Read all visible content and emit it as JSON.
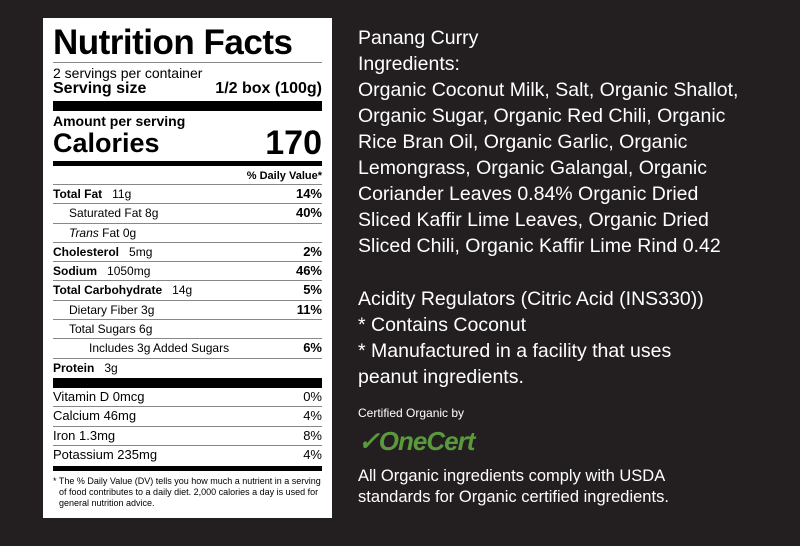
{
  "label": {
    "title": "Nutrition Facts",
    "servings": "2 servings per container",
    "serving_size_label": "Serving size",
    "serving_size_value": "1/2 box (100g)",
    "amount_per_serving": "Amount per serving",
    "calories_label": "Calories",
    "calories_value": "170",
    "dv_header": "% Daily Value*",
    "nutrients": [
      {
        "name": "Total Fat",
        "amount": "11g",
        "dv": "14%"
      },
      {
        "name": "Saturated Fat 8g",
        "amount": "",
        "dv": "40%"
      },
      {
        "name": "Trans",
        "amount": "Fat 0g",
        "dv": ""
      },
      {
        "name": "Cholesterol",
        "amount": "5mg",
        "dv": "2%"
      },
      {
        "name": "Sodium",
        "amount": "1050mg",
        "dv": "46%"
      },
      {
        "name": "Total Carbohydrate",
        "amount": "14g",
        "dv": "5%"
      },
      {
        "name": "Dietary Fiber 3g",
        "amount": "",
        "dv": "11%"
      },
      {
        "name": "Total Sugars 6g",
        "amount": "",
        "dv": ""
      },
      {
        "name": "Includes 3g Added Sugars",
        "amount": "",
        "dv": "6%"
      },
      {
        "name": "Protein",
        "amount": "3g",
        "dv": ""
      }
    ],
    "vitamins": [
      {
        "name": "Vitamin D 0mcg",
        "dv": "0%"
      },
      {
        "name": "Calcium 46mg",
        "dv": "4%"
      },
      {
        "name": "Iron 1.3mg",
        "dv": "8%"
      },
      {
        "name": "Potassium 235mg",
        "dv": "4%"
      }
    ],
    "footnote": "* The % Daily Value (DV) tells you how much a nutrient in a serving of food contributes to a daily diet. 2,000 calories a day is used for general nutrition advice."
  },
  "product": {
    "name": "Panang Curry",
    "ingredients_heading": "Ingredients:",
    "ingredient_lines": [
      "Organic Coconut Milk, Salt, Organic Shallot,",
      "Organic Sugar, Organic Red Chili, Organic",
      "Rice Bran Oil, Organic Garlic, Organic",
      "Lemongrass, Organic Galangal, Organic",
      "Coriander Leaves 0.84% Organic Dried",
      "Sliced Kaffir Lime Leaves, Organic Dried",
      "Sliced Chili, Organic Kaffir Lime Rind 0.42"
    ],
    "notes": [
      "Acidity Regulators (Citric Acid (INS330))",
      "* Contains Coconut",
      "* Manufactured in a facility that uses",
      "peanut ingredients."
    ],
    "certified_by": "Certified Organic by",
    "certifier_logo": "OneCert",
    "certifier_color": "#5a9a3c",
    "standards_lines": [
      "All Organic ingredients comply with USDA",
      "standards for Organic certified ingredients."
    ]
  }
}
